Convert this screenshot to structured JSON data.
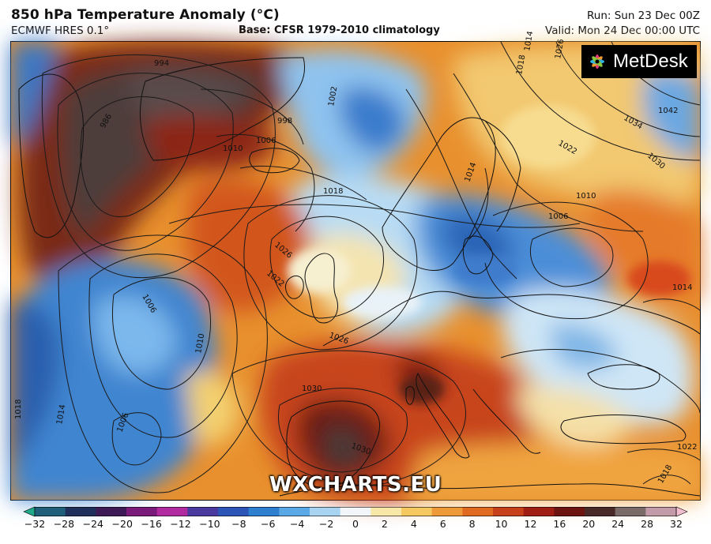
{
  "header": {
    "title": "850 hPa Temperature Anomaly (°C)",
    "model": "ECMWF HRES 0.1°",
    "base": "Base: CFSR 1979-2010 climatology",
    "run": "Run: Sun 23 Dec 00Z",
    "valid": "Valid: Mon 24 Dec 00:00 UTC"
  },
  "logo": {
    "text": "MetDesk"
  },
  "watermark": "WXCHARTS.EU",
  "isobar_labels": [
    "994",
    "986",
    "998",
    "1006",
    "1010",
    "1002",
    "1018",
    "1026",
    "1022",
    "1006",
    "1010",
    "1014",
    "1006",
    "1018",
    "1026",
    "1030",
    "1030",
    "1014",
    "1022",
    "1034",
    "1030",
    "1042",
    "1026",
    "1018",
    "1014",
    "1010",
    "1006",
    "1014",
    "1022",
    "1018"
  ],
  "colorbar": {
    "ticks": [
      "−32",
      "−28",
      "−24",
      "−20",
      "−16",
      "−12",
      "−10",
      "−8",
      "−6",
      "−4",
      "−2",
      "0",
      "2",
      "4",
      "6",
      "8",
      "10",
      "12",
      "16",
      "20",
      "24",
      "28",
      "32"
    ],
    "colors": [
      "#1fa88a",
      "#1f5f7a",
      "#1d2f5a",
      "#3d1a55",
      "#7a1a7a",
      "#b02aa0",
      "#4a3aa0",
      "#2c55b8",
      "#2f7fd0",
      "#5aa8e6",
      "#a8d4f2",
      "#f2f6fa",
      "#f8e8a8",
      "#f5c860",
      "#ef9a38",
      "#e06a20",
      "#c8401a",
      "#a01e14",
      "#6e1410",
      "#4a2a28",
      "#7a6a68",
      "#c29aa8",
      "#f3bfd0"
    ]
  }
}
